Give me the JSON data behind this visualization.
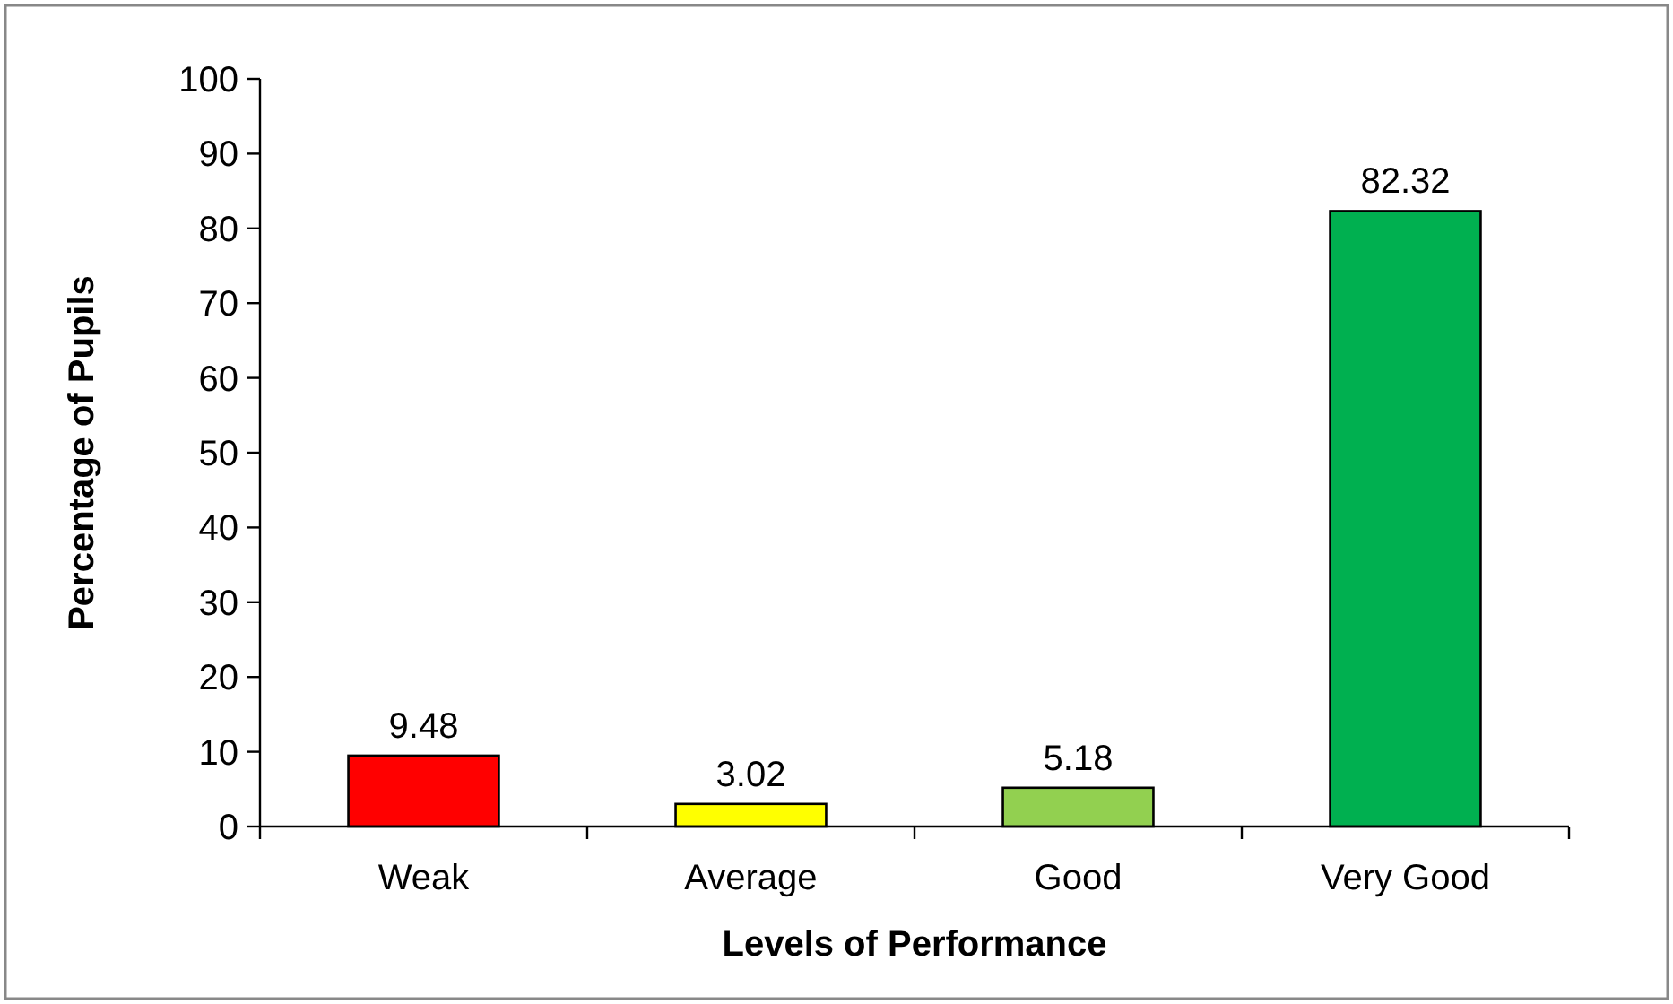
{
  "chart_data": {
    "type": "bar",
    "xlabel": "Levels of Performance",
    "ylabel": "Percentage of Pupils",
    "categories": [
      "Weak",
      "Average",
      "Good",
      "Very Good"
    ],
    "values": [
      9.48,
      3.02,
      5.18,
      82.32
    ],
    "colors": [
      "#ff0000",
      "#ffff00",
      "#92d050",
      "#00b050"
    ],
    "ylim": [
      0,
      100
    ],
    "yticks": [
      0,
      10,
      20,
      30,
      40,
      50,
      60,
      70,
      80,
      90,
      100
    ],
    "data_labels": true,
    "grid": false
  }
}
